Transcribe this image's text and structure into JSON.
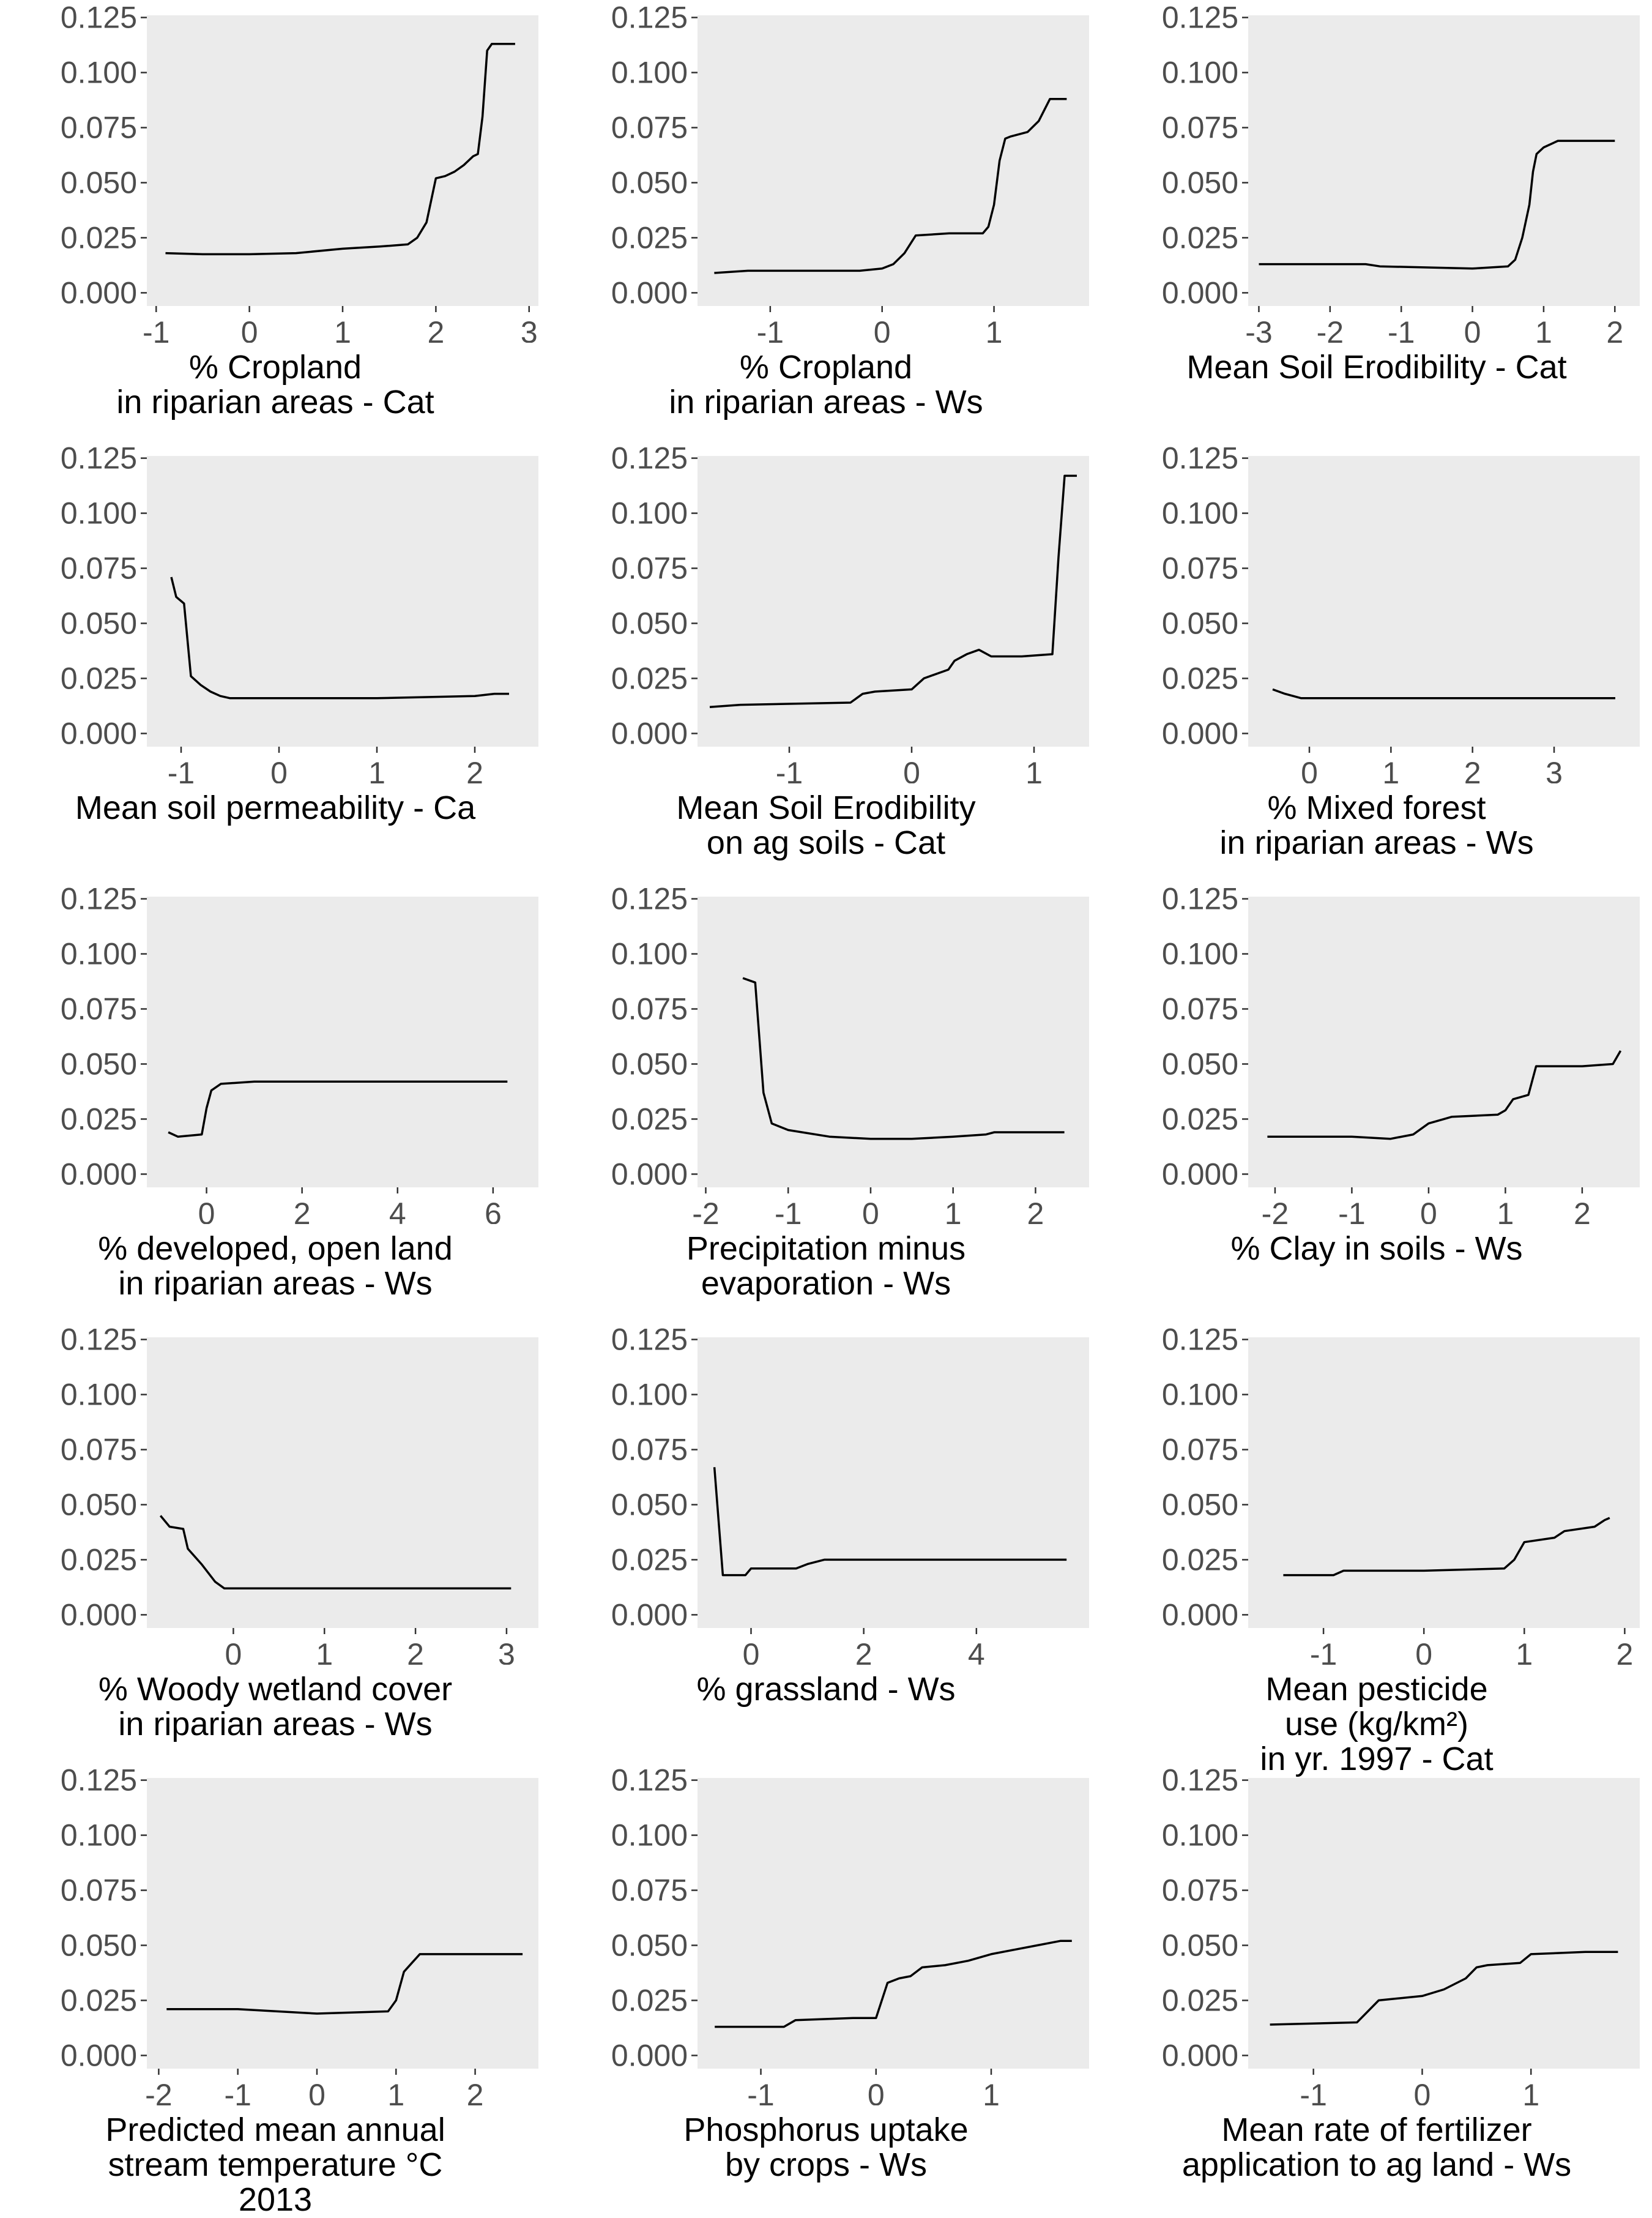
{
  "colors": {
    "panel_bg": "#EBEBEB",
    "line": "#000000",
    "tick": "#333333",
    "tick_label": "#4D4D4D"
  },
  "chart_data": [
    {
      "type": "line",
      "xlabel_lines": [
        "% Cropland",
        "in riparian areas - Cat"
      ],
      "xticks": [
        -1,
        0,
        1,
        2,
        3
      ],
      "xlim": [
        -1.1,
        3.1
      ],
      "yticks": [
        "0.000",
        "0.025",
        "0.050",
        "0.075",
        "0.100",
        "0.125"
      ],
      "ylim": [
        -0.006,
        0.126
      ],
      "x": [
        -0.9,
        -0.5,
        0,
        0.5,
        1,
        1.4,
        1.7,
        1.8,
        1.9,
        2.0,
        2.1,
        2.2,
        2.3,
        2.4,
        2.45,
        2.5,
        2.55,
        2.6,
        2.85
      ],
      "y": [
        0.018,
        0.0175,
        0.0175,
        0.018,
        0.02,
        0.021,
        0.022,
        0.025,
        0.032,
        0.052,
        0.053,
        0.055,
        0.058,
        0.062,
        0.063,
        0.08,
        0.11,
        0.113,
        0.113
      ]
    },
    {
      "type": "line",
      "xlabel_lines": [
        "% Cropland",
        "in riparian areas - Ws"
      ],
      "xticks": [
        -1,
        0,
        1
      ],
      "xlim": [
        -1.65,
        1.85
      ],
      "yticks": [
        "0.000",
        "0.025",
        "0.050",
        "0.075",
        "0.100",
        "0.125"
      ],
      "ylim": [
        -0.006,
        0.126
      ],
      "x": [
        -1.5,
        -1.2,
        -0.5,
        -0.2,
        0,
        0.1,
        0.2,
        0.3,
        0.6,
        0.9,
        0.95,
        1.0,
        1.05,
        1.1,
        1.15,
        1.3,
        1.4,
        1.5,
        1.65
      ],
      "y": [
        0.009,
        0.01,
        0.01,
        0.01,
        0.011,
        0.013,
        0.018,
        0.026,
        0.027,
        0.027,
        0.03,
        0.04,
        0.06,
        0.07,
        0.071,
        0.073,
        0.078,
        0.088,
        0.088
      ]
    },
    {
      "type": "line",
      "xlabel_lines": [
        "Mean Soil Erodibility - Cat"
      ],
      "xticks": [
        -3,
        -2,
        -1,
        0,
        1,
        2
      ],
      "xlim": [
        -3.15,
        2.35
      ],
      "yticks": [
        "0.000",
        "0.025",
        "0.050",
        "0.075",
        "0.100",
        "0.125"
      ],
      "ylim": [
        -0.006,
        0.126
      ],
      "x": [
        -3,
        -1.5,
        -1.3,
        0,
        0.5,
        0.6,
        0.7,
        0.8,
        0.85,
        0.9,
        1.0,
        1.2,
        1.5,
        2.0
      ],
      "y": [
        0.013,
        0.013,
        0.012,
        0.011,
        0.012,
        0.015,
        0.025,
        0.04,
        0.055,
        0.063,
        0.066,
        0.069,
        0.069,
        0.069
      ]
    },
    {
      "type": "line",
      "xlabel_lines": [
        "Mean soil permeability - Ca"
      ],
      "xticks": [
        -1,
        0,
        1,
        2
      ],
      "xlim": [
        -1.35,
        2.65
      ],
      "yticks": [
        "0.000",
        "0.025",
        "0.050",
        "0.075",
        "0.100",
        "0.125"
      ],
      "ylim": [
        -0.006,
        0.126
      ],
      "x": [
        -1.1,
        -1.05,
        -0.97,
        -0.9,
        -0.8,
        -0.7,
        -0.6,
        -0.5,
        0,
        1,
        2,
        2.2,
        2.35
      ],
      "y": [
        0.071,
        0.062,
        0.059,
        0.026,
        0.022,
        0.019,
        0.017,
        0.016,
        0.016,
        0.016,
        0.017,
        0.018,
        0.018
      ]
    },
    {
      "type": "line",
      "xlabel_lines": [
        "Mean Soil Erodibility",
        "on ag soils - Cat"
      ],
      "xticks": [
        -1,
        0,
        1
      ],
      "xlim": [
        -1.75,
        1.45
      ],
      "yticks": [
        "0.000",
        "0.025",
        "0.050",
        "0.075",
        "0.100",
        "0.125"
      ],
      "ylim": [
        -0.006,
        0.126
      ],
      "x": [
        -1.65,
        -1.4,
        -0.5,
        -0.4,
        -0.3,
        0,
        0.1,
        0.3,
        0.35,
        0.45,
        0.55,
        0.65,
        0.9,
        1.15,
        1.2,
        1.25,
        1.35
      ],
      "y": [
        0.012,
        0.013,
        0.014,
        0.018,
        0.019,
        0.02,
        0.025,
        0.029,
        0.033,
        0.036,
        0.038,
        0.035,
        0.035,
        0.036,
        0.08,
        0.117,
        0.117
      ]
    },
    {
      "type": "line",
      "xlabel_lines": [
        "% Mixed forest",
        "in riparian areas - Ws"
      ],
      "xticks": [
        0,
        1,
        2,
        3
      ],
      "xlim": [
        -0.75,
        4.05
      ],
      "yticks": [
        "0.000",
        "0.025",
        "0.050",
        "0.075",
        "0.100",
        "0.125"
      ],
      "ylim": [
        -0.006,
        0.126
      ],
      "x": [
        -0.45,
        -0.3,
        -0.1,
        0.5,
        1,
        2,
        3,
        3.75
      ],
      "y": [
        0.02,
        0.018,
        0.016,
        0.016,
        0.016,
        0.016,
        0.016,
        0.016
      ]
    },
    {
      "type": "line",
      "xlabel_lines": [
        "% developed, open land",
        "in riparian areas - Ws"
      ],
      "xticks": [
        0,
        2,
        4,
        6
      ],
      "xlim": [
        -1.25,
        6.95
      ],
      "yticks": [
        "0.000",
        "0.025",
        "0.050",
        "0.075",
        "0.100",
        "0.125"
      ],
      "ylim": [
        -0.006,
        0.126
      ],
      "x": [
        -0.8,
        -0.6,
        -0.1,
        0,
        0.1,
        0.3,
        1,
        2,
        4,
        6.3
      ],
      "y": [
        0.019,
        0.017,
        0.018,
        0.03,
        0.038,
        0.041,
        0.042,
        0.042,
        0.042,
        0.042
      ]
    },
    {
      "type": "line",
      "xlabel_lines": [
        "Precipitation minus",
        "evaporation - Ws"
      ],
      "xticks": [
        -2,
        -1,
        0,
        1,
        2
      ],
      "xlim": [
        -2.1,
        2.65
      ],
      "yticks": [
        "0.000",
        "0.025",
        "0.050",
        "0.075",
        "0.100",
        "0.125"
      ],
      "ylim": [
        -0.006,
        0.126
      ],
      "x": [
        -1.55,
        -1.4,
        -1.3,
        -1.2,
        -1.0,
        -0.5,
        0,
        0.5,
        1,
        1.4,
        1.5,
        2.35
      ],
      "y": [
        0.089,
        0.087,
        0.037,
        0.023,
        0.02,
        0.017,
        0.016,
        0.016,
        0.017,
        0.018,
        0.019,
        0.019
      ]
    },
    {
      "type": "line",
      "xlabel_lines": [
        "% Clay in soils - Ws"
      ],
      "xticks": [
        -2,
        -1,
        0,
        1,
        2
      ],
      "xlim": [
        -2.35,
        2.75
      ],
      "yticks": [
        "0.000",
        "0.025",
        "0.050",
        "0.075",
        "0.100",
        "0.125"
      ],
      "ylim": [
        -0.006,
        0.126
      ],
      "x": [
        -2.1,
        -1,
        -0.5,
        -0.2,
        0,
        0.2,
        0.3,
        0.9,
        1.0,
        1.1,
        1.3,
        1.4,
        2.0,
        2.4,
        2.5
      ],
      "y": [
        0.017,
        0.017,
        0.016,
        0.018,
        0.023,
        0.025,
        0.026,
        0.027,
        0.029,
        0.034,
        0.036,
        0.049,
        0.049,
        0.05,
        0.056
      ]
    },
    {
      "type": "line",
      "xlabel_lines": [
        "% Woody wetland cover",
        "in riparian areas - Ws"
      ],
      "xticks": [
        0,
        1,
        2,
        3
      ],
      "xlim": [
        -0.95,
        3.35
      ],
      "yticks": [
        "0.000",
        "0.025",
        "0.050",
        "0.075",
        "0.100",
        "0.125"
      ],
      "ylim": [
        -0.006,
        0.126
      ],
      "x": [
        -0.8,
        -0.7,
        -0.55,
        -0.5,
        -0.35,
        -0.2,
        -0.1,
        0,
        1,
        2,
        3.05
      ],
      "y": [
        0.045,
        0.04,
        0.039,
        0.03,
        0.023,
        0.015,
        0.012,
        0.012,
        0.012,
        0.012,
        0.012
      ]
    },
    {
      "type": "line",
      "xlabel_lines": [
        "% grassland - Ws"
      ],
      "xticks": [
        0,
        2,
        4
      ],
      "xlim": [
        -0.95,
        6.0
      ],
      "yticks": [
        "0.000",
        "0.025",
        "0.050",
        "0.075",
        "0.100",
        "0.125"
      ],
      "ylim": [
        -0.006,
        0.126
      ],
      "x": [
        -0.65,
        -0.5,
        -0.1,
        0,
        0.8,
        1.0,
        1.3,
        2,
        4,
        5.6
      ],
      "y": [
        0.067,
        0.018,
        0.018,
        0.021,
        0.021,
        0.023,
        0.025,
        0.025,
        0.025,
        0.025
      ]
    },
    {
      "type": "line",
      "xlabel_lines": [
        "Mean pesticide",
        "use (kg/km²)",
        "in yr. 1997 - Cat"
      ],
      "xticks": [
        -1,
        0,
        1,
        2
      ],
      "xlim": [
        -1.75,
        2.15
      ],
      "yticks": [
        "0.000",
        "0.025",
        "0.050",
        "0.075",
        "0.100",
        "0.125"
      ],
      "ylim": [
        -0.006,
        0.126
      ],
      "x": [
        -1.4,
        -0.9,
        -0.8,
        0,
        0.8,
        0.9,
        1.0,
        1.3,
        1.4,
        1.7,
        1.8,
        1.85
      ],
      "y": [
        0.018,
        0.018,
        0.02,
        0.02,
        0.021,
        0.025,
        0.033,
        0.035,
        0.038,
        0.04,
        0.043,
        0.044
      ]
    },
    {
      "type": "line",
      "xlabel_lines": [
        "Predicted mean annual",
        "stream temperature °C",
        "2013"
      ],
      "xticks": [
        -2,
        -1,
        0,
        1,
        2
      ],
      "xlim": [
        -2.15,
        2.8
      ],
      "yticks": [
        "0.000",
        "0.025",
        "0.050",
        "0.075",
        "0.100",
        "0.125"
      ],
      "ylim": [
        -0.006,
        0.126
      ],
      "x": [
        -1.9,
        -1,
        0,
        0.9,
        1.0,
        1.1,
        1.2,
        1.3,
        2,
        2.6
      ],
      "y": [
        0.021,
        0.021,
        0.019,
        0.02,
        0.025,
        0.038,
        0.042,
        0.046,
        0.046,
        0.046
      ]
    },
    {
      "type": "line",
      "xlabel_lines": [
        "Phosphorus uptake",
        "by crops - Ws"
      ],
      "xticks": [
        -1,
        0,
        1
      ],
      "xlim": [
        -1.55,
        1.85
      ],
      "yticks": [
        "0.000",
        "0.025",
        "0.050",
        "0.075",
        "0.100",
        "0.125"
      ],
      "ylim": [
        -0.006,
        0.126
      ],
      "x": [
        -1.4,
        -0.8,
        -0.7,
        -0.2,
        0,
        0.1,
        0.2,
        0.3,
        0.4,
        0.6,
        0.8,
        1.0,
        1.2,
        1.4,
        1.6,
        1.7
      ],
      "y": [
        0.013,
        0.013,
        0.016,
        0.017,
        0.017,
        0.033,
        0.035,
        0.036,
        0.04,
        0.041,
        0.043,
        0.046,
        0.048,
        0.05,
        0.052,
        0.052
      ]
    },
    {
      "type": "line",
      "xlabel_lines": [
        "Mean rate of fertilizer",
        "application to ag land - Ws"
      ],
      "xticks": [
        -1,
        0,
        1
      ],
      "xlim": [
        -1.6,
        2.0
      ],
      "yticks": [
        "0.000",
        "0.025",
        "0.050",
        "0.075",
        "0.100",
        "0.125"
      ],
      "ylim": [
        -0.006,
        0.126
      ],
      "x": [
        -1.4,
        -0.6,
        -0.5,
        -0.4,
        0,
        0.2,
        0.4,
        0.5,
        0.6,
        0.9,
        1.0,
        1.5,
        1.8
      ],
      "y": [
        0.014,
        0.015,
        0.02,
        0.025,
        0.027,
        0.03,
        0.035,
        0.04,
        0.041,
        0.042,
        0.046,
        0.047,
        0.047
      ]
    }
  ]
}
